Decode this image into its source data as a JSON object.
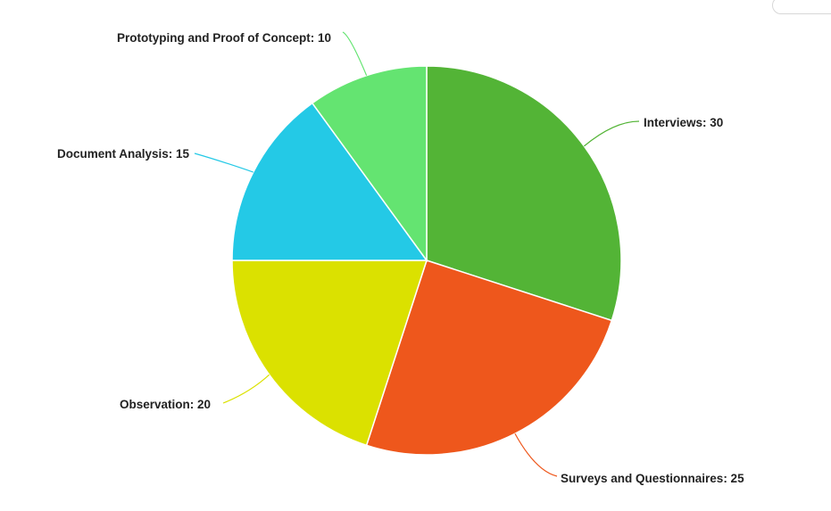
{
  "chart_data": {
    "type": "pie",
    "title": "",
    "slices": [
      {
        "name": "Interviews",
        "value": 30,
        "color": "#53b436",
        "label": "Interviews: 30"
      },
      {
        "name": "Surveys and Questionnaires",
        "value": 25,
        "color": "#ee571c",
        "label": "Surveys and Questionnaires: 25"
      },
      {
        "name": "Observation",
        "value": 20,
        "color": "#dbe100",
        "label": "Observation: 20"
      },
      {
        "name": "Document Analysis",
        "value": 15,
        "color": "#24c9e6",
        "label": "Document Analysis: 15"
      },
      {
        "name": "Prototyping and Proof of Concept",
        "value": 10,
        "color": "#64e471",
        "label": "Prototyping and Proof of Concept: 10"
      }
    ]
  }
}
